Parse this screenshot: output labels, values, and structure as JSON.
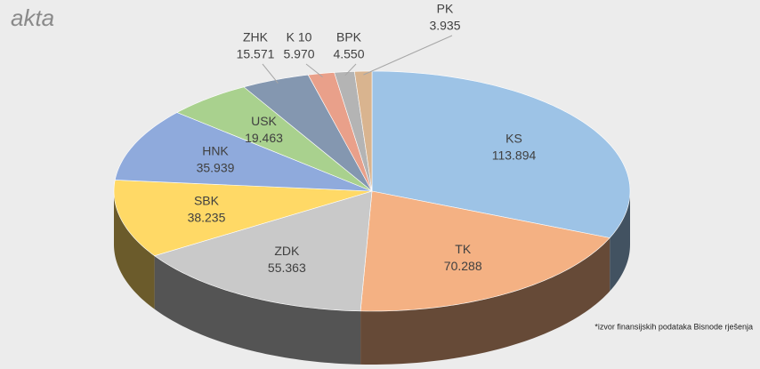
{
  "logo": "akta",
  "source": "*izvor finansijskih podataka Bisnode rješenja",
  "chart_data": {
    "type": "pie3d",
    "categories": [
      "KS",
      "TK",
      "ZDK",
      "SBK",
      "HNK",
      "USK",
      "ZHK",
      "K 10",
      "BPK",
      "PK"
    ],
    "values": [
      113894,
      70288,
      55363,
      38235,
      35939,
      19463,
      15571,
      5970,
      4550,
      3935
    ],
    "value_labels": [
      "113.894",
      "70.288",
      "55.363",
      "38.235",
      "35.939",
      "19.463",
      "15.571",
      "5.970",
      "4.550",
      "3.935"
    ],
    "colors": [
      "#9dc3e6",
      "#f4b183",
      "#c9c9c9",
      "#ffd966",
      "#8faadc",
      "#a9d18e",
      "#8497b0",
      "#e9a08a",
      "#b4b4b4",
      "#d9b48f"
    ]
  }
}
